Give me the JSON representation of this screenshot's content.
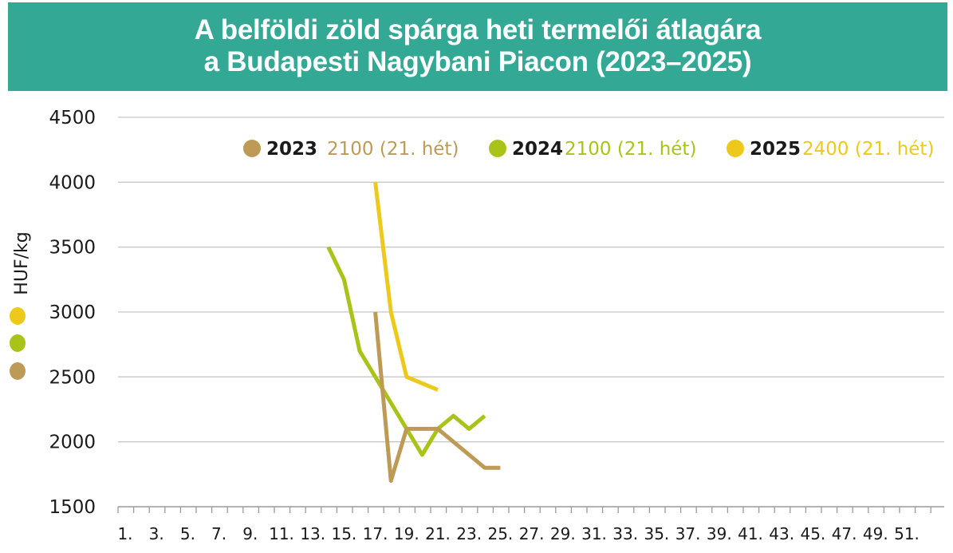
{
  "title": {
    "line1": "A belföldi zöld spárga heti termelői átlagára",
    "line2": "a Budapesti Nagybani Piacon (2023–2025)"
  },
  "chart_data": {
    "type": "line",
    "ylabel": "HUF/kg",
    "ylim": [
      1500,
      4500
    ],
    "yticks": [
      "4500",
      "4000",
      "3500",
      "3000",
      "2500",
      "2000",
      "1500"
    ],
    "xlim": [
      1,
      52
    ],
    "xticks": [
      "1.",
      "3.",
      "5.",
      "7.",
      "9.",
      "11.",
      "13.",
      "15.",
      "17.",
      "19.",
      "21.",
      "23.",
      "25.",
      "27.",
      "29.",
      "31.",
      "33.",
      "35.",
      "37.",
      "39.",
      "41.",
      "43.",
      "45.",
      "47.",
      "49.",
      "51."
    ],
    "grid": "horizontal",
    "legend_position": "top-right",
    "series": [
      {
        "name": "2023",
        "note": "2100 (21. hét)",
        "color": "#bd9b57",
        "x": [
          17,
          18,
          19,
          20,
          21,
          22,
          23,
          24,
          25
        ],
        "values": [
          3000,
          1700,
          2100,
          2100,
          2100,
          2000,
          1900,
          1800,
          1800
        ]
      },
      {
        "name": "2024",
        "note": "2100 (21. hét)",
        "color": "#a9c318",
        "x": [
          14,
          15,
          16,
          17,
          18,
          19,
          20,
          21,
          22,
          23,
          24
        ],
        "values": [
          3500,
          3250,
          2700,
          2500,
          2300,
          2100,
          1900,
          2100,
          2200,
          2100,
          2200
        ]
      },
      {
        "name": "2025",
        "note": "2400 (21. hét)",
        "color": "#edc91c",
        "x": [
          17,
          18,
          19,
          20,
          21
        ],
        "values": [
          4000,
          3000,
          2500,
          2450,
          2400
        ]
      }
    ],
    "side_markers": [
      "#edc91c",
      "#a9c318",
      "#bd9b57"
    ]
  }
}
